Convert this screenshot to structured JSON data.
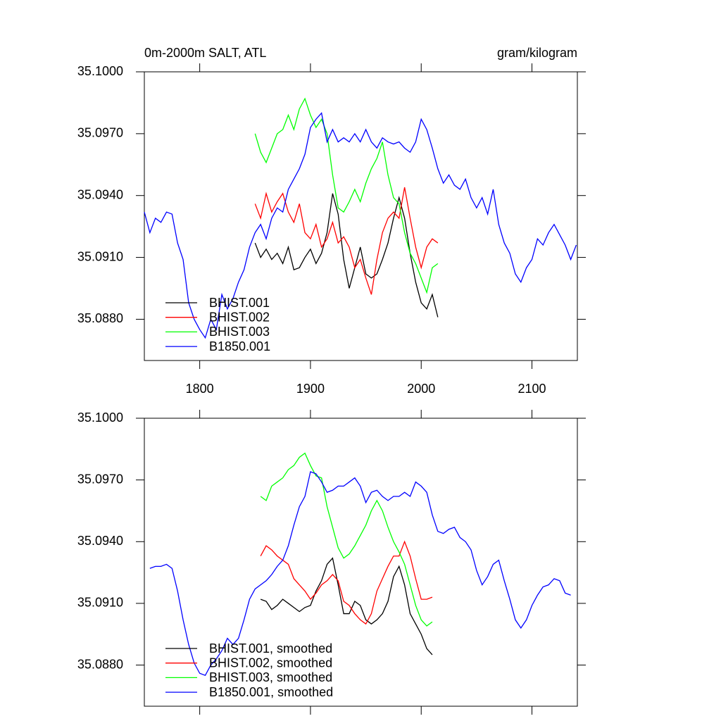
{
  "chart_data": [
    {
      "type": "line",
      "title": "0m-2000m SALT, ATL",
      "units": "gram/kilogram",
      "xlim": [
        1750,
        2141
      ],
      "xticks": [
        1800,
        1900,
        2000,
        2100
      ],
      "xtick_labels": true,
      "ylim": [
        35.086,
        35.1
      ],
      "yticks": [
        {
          "value": 35.1,
          "label": "35.1000"
        },
        {
          "value": 35.097,
          "label": "35.0970"
        },
        {
          "value": 35.094,
          "label": "35.0940"
        },
        {
          "value": 35.091,
          "label": "35.0910"
        },
        {
          "value": 35.088,
          "label": "35.0880"
        }
      ],
      "legend": "lower left",
      "series": [
        {
          "name": "BHIST.001",
          "color": "#000000",
          "x": [
            1850,
            1855,
            1860,
            1865,
            1870,
            1875,
            1880,
            1885,
            1890,
            1895,
            1900,
            1905,
            1910,
            1915,
            1920,
            1925,
            1930,
            1935,
            1940,
            1945,
            1950,
            1955,
            1960,
            1965,
            1970,
            1975,
            1980,
            1985,
            1990,
            1995,
            2000,
            2005,
            2010,
            2015
          ],
          "values": [
            35.0917,
            35.091,
            35.0914,
            35.0909,
            35.0912,
            35.0907,
            35.0915,
            35.0904,
            35.0905,
            35.091,
            35.0914,
            35.0907,
            35.0912,
            35.0922,
            35.0941,
            35.0931,
            35.0909,
            35.0895,
            35.0905,
            35.0915,
            35.0902,
            35.09,
            35.0902,
            35.0909,
            35.0917,
            35.0929,
            35.0939,
            35.0929,
            35.0912,
            35.0898,
            35.0888,
            35.0885,
            35.0892,
            35.0881
          ]
        },
        {
          "name": "BHIST.002",
          "color": "#ff0000",
          "x": [
            1850,
            1855,
            1860,
            1865,
            1870,
            1875,
            1880,
            1885,
            1890,
            1895,
            1900,
            1905,
            1910,
            1915,
            1920,
            1925,
            1930,
            1935,
            1940,
            1945,
            1950,
            1955,
            1960,
            1965,
            1970,
            1975,
            1980,
            1985,
            1990,
            1995,
            2000,
            2005,
            2010,
            2015
          ],
          "values": [
            35.0936,
            35.0929,
            35.0941,
            35.0932,
            35.0937,
            35.0941,
            35.0932,
            35.0927,
            35.0936,
            35.0922,
            35.0919,
            35.0926,
            35.0915,
            35.0919,
            35.0927,
            35.0917,
            35.092,
            35.0915,
            35.0905,
            35.0909,
            35.09,
            35.0892,
            35.0909,
            35.0922,
            35.0929,
            35.0932,
            35.0929,
            35.0944,
            35.0929,
            35.0915,
            35.0905,
            35.0915,
            35.0919,
            35.0917
          ]
        },
        {
          "name": "BHIST.003",
          "color": "#00ff00",
          "x": [
            1850,
            1855,
            1860,
            1865,
            1870,
            1875,
            1880,
            1885,
            1890,
            1895,
            1900,
            1905,
            1910,
            1915,
            1920,
            1925,
            1930,
            1935,
            1940,
            1945,
            1950,
            1955,
            1960,
            1965,
            1970,
            1975,
            1980,
            1985,
            1990,
            1995,
            2000,
            2005,
            2010,
            2015
          ],
          "values": [
            35.097,
            35.0961,
            35.0956,
            35.0963,
            35.097,
            35.0972,
            35.0979,
            35.0972,
            35.0982,
            35.0987,
            35.0979,
            35.0973,
            35.0977,
            35.097,
            35.095,
            35.0934,
            35.0932,
            35.0937,
            35.0943,
            35.0937,
            35.0946,
            35.0953,
            35.0958,
            35.0966,
            35.095,
            35.0939,
            35.0936,
            35.0922,
            35.0912,
            35.0907,
            35.09,
            35.0893,
            35.0905,
            35.0907
          ]
        },
        {
          "name": "B1850.001",
          "color": "#0000ff",
          "x": [
            1750,
            1755,
            1760,
            1765,
            1770,
            1775,
            1780,
            1785,
            1790,
            1795,
            1800,
            1805,
            1810,
            1815,
            1820,
            1825,
            1830,
            1835,
            1840,
            1845,
            1850,
            1855,
            1860,
            1865,
            1870,
            1875,
            1880,
            1885,
            1890,
            1895,
            1900,
            1905,
            1910,
            1915,
            1920,
            1925,
            1930,
            1935,
            1940,
            1945,
            1950,
            1955,
            1960,
            1965,
            1970,
            1975,
            1980,
            1985,
            1990,
            1995,
            2000,
            2005,
            2010,
            2015,
            2020,
            2025,
            2030,
            2035,
            2040,
            2045,
            2050,
            2055,
            2060,
            2065,
            2070,
            2075,
            2080,
            2085,
            2090,
            2095,
            2100,
            2105,
            2110,
            2115,
            2120,
            2125,
            2130,
            2135,
            2140
          ],
          "values": [
            35.0932,
            35.0922,
            35.0929,
            35.0927,
            35.0932,
            35.0931,
            35.0917,
            35.0909,
            35.0888,
            35.088,
            35.0875,
            35.0871,
            35.088,
            35.0875,
            35.0892,
            35.0885,
            35.089,
            35.0898,
            35.0904,
            35.0915,
            35.0922,
            35.0926,
            35.0919,
            35.0929,
            35.0934,
            35.0932,
            35.0943,
            35.0948,
            35.0953,
            35.096,
            35.0973,
            35.0977,
            35.098,
            35.0966,
            35.0972,
            35.0966,
            35.0968,
            35.0966,
            35.097,
            35.0966,
            35.0972,
            35.0966,
            35.0963,
            35.0968,
            35.0966,
            35.0965,
            35.0966,
            35.0963,
            35.0961,
            35.0966,
            35.0977,
            35.0972,
            35.0963,
            35.0953,
            35.0946,
            35.095,
            35.0945,
            35.0943,
            35.0948,
            35.0939,
            35.0934,
            35.0939,
            35.0931,
            35.0943,
            35.0926,
            35.0917,
            35.0912,
            35.0902,
            35.0898,
            35.0905,
            35.0909,
            35.0919,
            35.0916,
            35.0922,
            35.0926,
            35.0921,
            35.0916,
            35.0909,
            35.0916
          ]
        }
      ]
    },
    {
      "type": "line",
      "xlim": [
        1750,
        2141
      ],
      "xticks": [
        1800,
        1900,
        2000,
        2100
      ],
      "xtick_labels": false,
      "ylim": [
        35.086,
        35.1
      ],
      "yticks": [
        {
          "value": 35.1,
          "label": "35.1000"
        },
        {
          "value": 35.097,
          "label": "35.0970"
        },
        {
          "value": 35.094,
          "label": "35.0940"
        },
        {
          "value": 35.091,
          "label": "35.0910"
        },
        {
          "value": 35.088,
          "label": "35.0880"
        }
      ],
      "legend": "lower left",
      "series": [
        {
          "name": "BHIST.001, smoothed",
          "color": "#000000",
          "x": [
            1855,
            1860,
            1865,
            1870,
            1875,
            1880,
            1885,
            1890,
            1895,
            1900,
            1905,
            1910,
            1915,
            1920,
            1925,
            1930,
            1935,
            1940,
            1945,
            1950,
            1955,
            1960,
            1965,
            1970,
            1975,
            1980,
            1985,
            1990,
            1995,
            2000,
            2005,
            2010
          ],
          "values": [
            35.0912,
            35.0911,
            35.0907,
            35.0909,
            35.0912,
            35.091,
            35.0908,
            35.0906,
            35.0908,
            35.0909,
            35.0916,
            35.0921,
            35.0929,
            35.0932,
            35.0919,
            35.0905,
            35.0905,
            35.0911,
            35.0909,
            35.0902,
            35.09,
            35.0902,
            35.0905,
            35.0911,
            35.0923,
            35.0928,
            35.0919,
            35.0905,
            35.09,
            35.0895,
            35.0888,
            35.0885
          ]
        },
        {
          "name": "BHIST.002, smoothed",
          "color": "#ff0000",
          "x": [
            1855,
            1860,
            1865,
            1870,
            1875,
            1880,
            1885,
            1890,
            1895,
            1900,
            1905,
            1910,
            1915,
            1920,
            1925,
            1930,
            1935,
            1940,
            1945,
            1950,
            1955,
            1960,
            1965,
            1970,
            1975,
            1980,
            1985,
            1990,
            1995,
            2000,
            2005,
            2010
          ],
          "values": [
            35.0933,
            35.0938,
            35.0936,
            35.0933,
            35.0931,
            35.0929,
            35.0922,
            35.0919,
            35.0916,
            35.0912,
            35.0915,
            35.0919,
            35.0921,
            35.0924,
            35.0921,
            35.0911,
            35.0909,
            35.0905,
            35.0902,
            35.09,
            35.0905,
            35.0916,
            35.0922,
            35.0928,
            35.0933,
            35.0933,
            35.094,
            35.0933,
            35.0922,
            35.0912,
            35.0912,
            35.0913
          ]
        },
        {
          "name": "BHIST.003, smoothed",
          "color": "#00ff00",
          "x": [
            1855,
            1860,
            1865,
            1870,
            1875,
            1880,
            1885,
            1890,
            1895,
            1900,
            1905,
            1910,
            1915,
            1920,
            1925,
            1930,
            1935,
            1940,
            1945,
            1950,
            1955,
            1960,
            1965,
            1970,
            1975,
            1980,
            1985,
            1990,
            1995,
            2000,
            2005,
            2010
          ],
          "values": [
            35.0962,
            35.096,
            35.0967,
            35.0969,
            35.0971,
            35.0975,
            35.0977,
            35.0981,
            35.0983,
            35.0977,
            35.0972,
            35.0971,
            35.0957,
            35.0947,
            35.0937,
            35.0932,
            35.0934,
            35.0938,
            35.0943,
            35.0948,
            35.0955,
            35.096,
            35.0955,
            35.0947,
            35.094,
            35.0935,
            35.0929,
            35.0919,
            35.0909,
            35.0902,
            35.0899,
            35.0901
          ]
        },
        {
          "name": "B1850.001, smoothed",
          "color": "#0000ff",
          "x": [
            1755,
            1760,
            1765,
            1770,
            1775,
            1780,
            1785,
            1790,
            1795,
            1800,
            1805,
            1810,
            1815,
            1820,
            1825,
            1830,
            1835,
            1840,
            1845,
            1850,
            1855,
            1860,
            1865,
            1870,
            1875,
            1880,
            1885,
            1890,
            1895,
            1900,
            1905,
            1910,
            1915,
            1920,
            1925,
            1930,
            1935,
            1940,
            1945,
            1950,
            1955,
            1960,
            1965,
            1970,
            1975,
            1980,
            1985,
            1990,
            1995,
            2000,
            2005,
            2010,
            2015,
            2020,
            2025,
            2030,
            2035,
            2040,
            2045,
            2050,
            2055,
            2060,
            2065,
            2070,
            2075,
            2080,
            2085,
            2090,
            2095,
            2100,
            2105,
            2110,
            2115,
            2120,
            2125,
            2130,
            2135
          ],
          "values": [
            35.0927,
            35.0928,
            35.0928,
            35.0929,
            35.0927,
            35.0916,
            35.0902,
            35.089,
            35.0881,
            35.0876,
            35.0875,
            35.088,
            35.0883,
            35.0887,
            35.0893,
            35.089,
            35.0893,
            35.0902,
            35.0912,
            35.0917,
            35.0919,
            35.0921,
            35.0924,
            35.0928,
            35.0931,
            35.0938,
            35.0948,
            35.0957,
            35.0962,
            35.0974,
            35.0973,
            35.0969,
            35.0964,
            35.0965,
            35.0967,
            35.0967,
            35.0969,
            35.0971,
            35.0967,
            35.0959,
            35.0964,
            35.0965,
            35.0962,
            35.096,
            35.0962,
            35.0962,
            35.0964,
            35.0962,
            35.0969,
            35.0967,
            35.0964,
            35.0953,
            35.0945,
            35.0944,
            35.0946,
            35.0947,
            35.0942,
            35.094,
            35.0936,
            35.0926,
            35.0919,
            35.0923,
            35.0929,
            35.0931,
            35.0921,
            35.0912,
            35.0902,
            35.0898,
            35.0902,
            35.0909,
            35.0914,
            35.0918,
            35.0919,
            35.0922,
            35.0921,
            35.0915,
            35.0914
          ]
        }
      ]
    }
  ]
}
